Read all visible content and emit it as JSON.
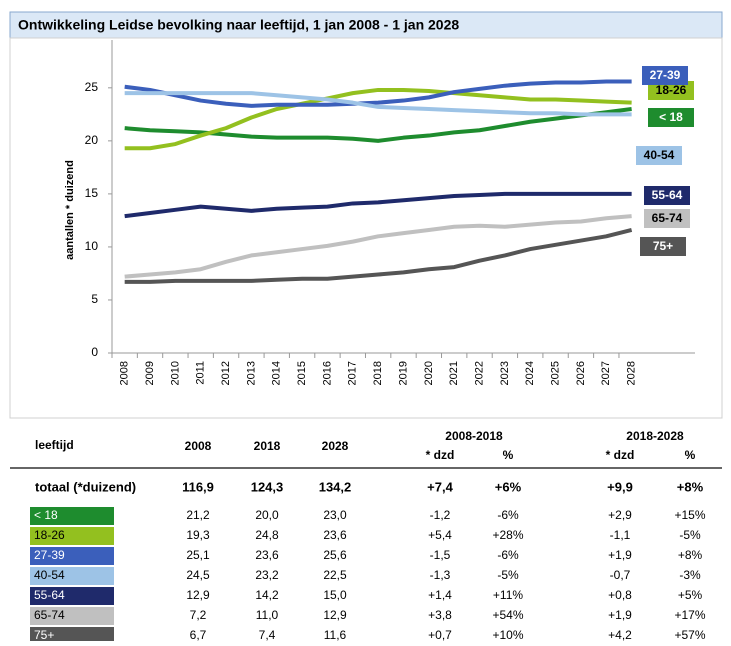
{
  "chart_data": {
    "type": "line",
    "title": "Ontwikkeling Leidse bevolking naar leeftijd, 1 jan 2008 - 1 jan 2028",
    "y_label": "aantallen * duizend",
    "x": [
      2008,
      2009,
      2010,
      2011,
      2012,
      2013,
      2014,
      2015,
      2016,
      2017,
      2018,
      2019,
      2020,
      2021,
      2022,
      2023,
      2024,
      2025,
      2026,
      2027,
      2028
    ],
    "xlim": [
      2007.5,
      2030.5
    ],
    "ylim": [
      0,
      28
    ],
    "yticks": [
      0,
      5,
      10,
      15,
      20,
      25
    ],
    "series": [
      {
        "name": "< 18",
        "color": "#1e8c2e",
        "values": [
          21.2,
          21.0,
          20.9,
          20.8,
          20.6,
          20.4,
          20.3,
          20.3,
          20.3,
          20.2,
          20.0,
          20.3,
          20.5,
          20.8,
          21.0,
          21.4,
          21.8,
          22.1,
          22.4,
          22.7,
          23.0
        ]
      },
      {
        "name": "18-26",
        "color": "#93c01f",
        "values": [
          19.3,
          19.3,
          19.7,
          20.5,
          21.2,
          22.2,
          23.0,
          23.5,
          24.0,
          24.5,
          24.8,
          24.8,
          24.7,
          24.5,
          24.3,
          24.1,
          23.9,
          23.9,
          23.8,
          23.7,
          23.6
        ]
      },
      {
        "name": "27-39",
        "color": "#3b5fbb",
        "values": [
          25.1,
          24.8,
          24.3,
          23.8,
          23.5,
          23.3,
          23.4,
          23.4,
          23.4,
          23.5,
          23.6,
          23.8,
          24.1,
          24.6,
          24.9,
          25.2,
          25.4,
          25.5,
          25.5,
          25.6,
          25.6
        ]
      },
      {
        "name": "40-54",
        "color": "#9dc3e6",
        "values": [
          24.5,
          24.5,
          24.5,
          24.5,
          24.5,
          24.5,
          24.3,
          24.1,
          23.9,
          23.6,
          23.2,
          23.1,
          23.0,
          22.9,
          22.8,
          22.7,
          22.6,
          22.6,
          22.5,
          22.5,
          22.5
        ]
      },
      {
        "name": "55-64",
        "color": "#1f2a6b",
        "values": [
          12.9,
          13.2,
          13.5,
          13.8,
          13.6,
          13.4,
          13.6,
          13.7,
          13.8,
          14.1,
          14.2,
          14.4,
          14.6,
          14.8,
          14.9,
          15.0,
          15.0,
          15.0,
          15.0,
          15.0,
          15.0
        ]
      },
      {
        "name": "65-74",
        "color": "#c0c0c0",
        "values": [
          7.2,
          7.4,
          7.6,
          7.9,
          8.6,
          9.2,
          9.5,
          9.8,
          10.1,
          10.5,
          11.0,
          11.3,
          11.6,
          11.9,
          12.0,
          11.9,
          12.1,
          12.3,
          12.4,
          12.7,
          12.9
        ]
      },
      {
        "name": "75+",
        "color": "#555555",
        "values": [
          6.7,
          6.7,
          6.8,
          6.8,
          6.8,
          6.8,
          6.9,
          7.0,
          7.0,
          7.2,
          7.4,
          7.6,
          7.9,
          8.1,
          8.7,
          9.2,
          9.8,
          10.2,
          10.6,
          11.0,
          11.6
        ]
      }
    ]
  },
  "table": {
    "header": [
      "leeftijd",
      "2008",
      "2018",
      "2028",
      "2008-2018",
      "2018-2028"
    ],
    "subheader": [
      "* dzd",
      "%",
      "* dzd",
      "%"
    ],
    "total": [
      "totaal (*duizend)",
      "116,9",
      "124,3",
      "134,2",
      "+7,4",
      "+6%",
      "+9,9",
      "+8%"
    ],
    "rows": [
      [
        "< 18",
        "21,2",
        "20,0",
        "23,0",
        "-1,2",
        "-6%",
        "+2,9",
        "+15%"
      ],
      [
        "18-26",
        "19,3",
        "24,8",
        "23,6",
        "+5,4",
        "+28%",
        "-1,1",
        "-5%"
      ],
      [
        "27-39",
        "25,1",
        "23,6",
        "25,6",
        "-1,5",
        "-6%",
        "+1,9",
        "+8%"
      ],
      [
        "40-54",
        "24,5",
        "23,2",
        "22,5",
        "-1,3",
        "-5%",
        "-0,7",
        "-3%"
      ],
      [
        "55-64",
        "12,9",
        "14,2",
        "15,0",
        "+1,4",
        "+11%",
        "+0,8",
        "+5%"
      ],
      [
        "65-74",
        "7,2",
        "11,0",
        "12,9",
        "+3,8",
        "+54%",
        "+1,9",
        "+17%"
      ],
      [
        "75+",
        "6,7",
        "7,4",
        "11,6",
        "+0,7",
        "+10%",
        "+4,2",
        "+57%"
      ]
    ]
  }
}
